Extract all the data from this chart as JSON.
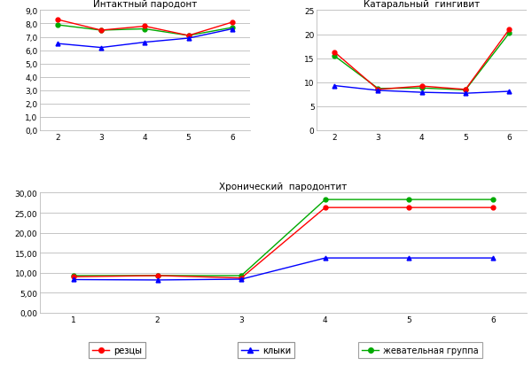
{
  "chart1": {
    "title": "Интактный пародонт",
    "x": [
      2,
      3,
      4,
      5,
      6
    ],
    "rezcy": [
      8.3,
      7.5,
      7.8,
      7.1,
      8.1
    ],
    "klyki": [
      6.5,
      6.2,
      6.6,
      6.9,
      7.6
    ],
    "zhev": [
      7.9,
      7.5,
      7.6,
      7.1,
      7.7
    ],
    "ylim": [
      0.0,
      9.0
    ],
    "yticks": [
      0.0,
      1.0,
      2.0,
      3.0,
      4.0,
      5.0,
      6.0,
      7.0,
      8.0,
      9.0
    ],
    "ytick_labels": [
      "0,0",
      "1,0",
      "2,0",
      "3,0",
      "4,0",
      "5,0",
      "6,0",
      "7,0",
      "8,0",
      "9,0"
    ]
  },
  "chart2": {
    "title": "Катаральный  гингивит",
    "x": [
      2,
      3,
      4,
      5,
      6
    ],
    "rezcy": [
      16.3,
      8.5,
      9.2,
      8.5,
      21.0
    ],
    "klyki": [
      9.3,
      8.3,
      7.9,
      7.7,
      8.1
    ],
    "zhev": [
      15.5,
      8.7,
      8.8,
      8.4,
      20.2
    ],
    "ylim": [
      0,
      25
    ],
    "yticks": [
      0,
      5,
      10,
      15,
      20,
      25
    ],
    "ytick_labels": [
      "0",
      "5",
      "10",
      "15",
      "20",
      "25"
    ]
  },
  "chart3": {
    "title": "Хронический  пародонтит",
    "x": [
      1,
      2,
      3,
      4,
      5,
      6
    ],
    "rezcy": [
      9.0,
      9.3,
      8.7,
      26.3,
      26.3,
      26.3
    ],
    "klyki": [
      8.3,
      8.2,
      8.4,
      13.7,
      13.7,
      13.7
    ],
    "zhev": [
      9.3,
      9.3,
      9.3,
      28.3,
      28.3,
      28.3
    ],
    "ylim": [
      0.0,
      30.0
    ],
    "yticks": [
      0.0,
      5.0,
      10.0,
      15.0,
      20.0,
      25.0,
      30.0
    ],
    "ytick_labels": [
      "0,00",
      "5,00",
      "10,00",
      "15,00",
      "20,00",
      "25,00",
      "30,00"
    ]
  },
  "colors": {
    "rezcy": "#ff0000",
    "klyki": "#0000ff",
    "zhev": "#00aa00"
  },
  "legend": {
    "rezcy": "резцы",
    "klyki": "клыки",
    "zhev": "жевательная группа"
  },
  "title_fontsize": 7.5,
  "tick_fontsize": 6.5,
  "marker_size": 3.5,
  "line_width": 1.0
}
